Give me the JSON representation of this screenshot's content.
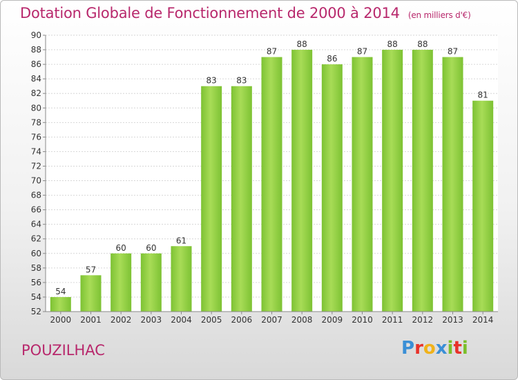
{
  "title": "Dotation Globale de Fonctionnement de 2000 à 2014",
  "subtitle": "(en milliers d'€)",
  "commune": "POUZILHAC",
  "logo": {
    "letters": [
      "P",
      "r",
      "o",
      "x",
      "i",
      "t",
      "i"
    ],
    "colors": [
      "#3a8fd6",
      "#e8322a",
      "#f0b21a",
      "#3a8fd6",
      "#7bbf2a",
      "#e8322a",
      "#7bbf2a"
    ]
  },
  "colors": {
    "bar": "#7dc233",
    "bar_light": "#a8dc57",
    "accent": "#b8286c"
  },
  "chart_data": {
    "type": "bar",
    "categories": [
      "2000",
      "2001",
      "2002",
      "2003",
      "2004",
      "2005",
      "2006",
      "2007",
      "2008",
      "2009",
      "2010",
      "2011",
      "2012",
      "2013",
      "2014"
    ],
    "values": [
      54,
      57,
      60,
      60,
      61,
      83,
      83,
      87,
      88,
      86,
      87,
      88,
      88,
      87,
      81
    ],
    "ylim": [
      52,
      90
    ],
    "yticks": [
      52,
      54,
      56,
      58,
      60,
      62,
      64,
      66,
      68,
      70,
      72,
      74,
      76,
      78,
      80,
      82,
      84,
      86,
      88,
      90
    ],
    "grid": true,
    "xlabel": "",
    "ylabel": ""
  }
}
